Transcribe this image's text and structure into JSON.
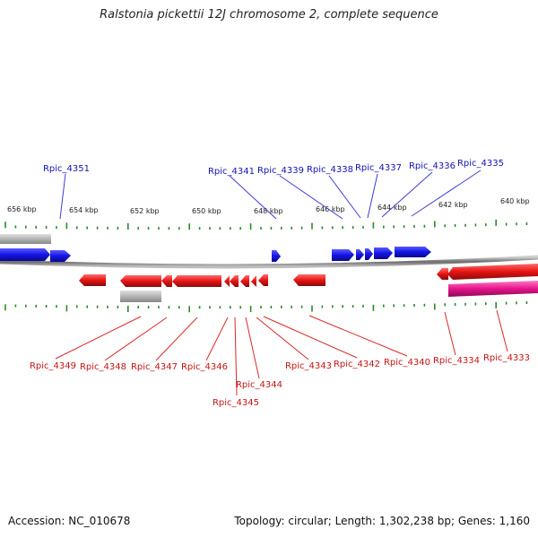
{
  "title": "Ralstonia pickettii 12J chromosome 2, complete sequence",
  "footer": {
    "accession": "Accession: NC_010678",
    "summary": "Topology: circular; Length: 1,302,238 bp; Genes: 1,160"
  },
  "colors": {
    "forward_gene": "#1e1ee6",
    "reverse_gene": "#e61414",
    "pseudo_gene": "#b4b4b4",
    "rna_gene": "#e6148c",
    "tick": "#2a8a2a",
    "backbone": "#7a7a7a",
    "label_top": "#1414b4",
    "label_bottom": "#c81414"
  },
  "scale": {
    "unit": "kbp",
    "labels": [
      "656 kbp",
      "654 kbp",
      "652 kbp",
      "650 kbp",
      "648 kbp",
      "646 kbp",
      "644 kbp",
      "642 kbp",
      "640 kbp"
    ]
  },
  "genes_top": [
    "Rpic_4351",
    "Rpic_4341",
    "Rpic_4339",
    "Rpic_4338",
    "Rpic_4337",
    "Rpic_4336",
    "Rpic_4335"
  ],
  "genes_bottom": [
    "Rpic_4349",
    "Rpic_4348",
    "Rpic_4347",
    "Rpic_4346",
    "Rpic_4345",
    "Rpic_4344",
    "Rpic_4343",
    "Rpic_4342",
    "Rpic_4340",
    "Rpic_4334",
    "Rpic_4333"
  ]
}
